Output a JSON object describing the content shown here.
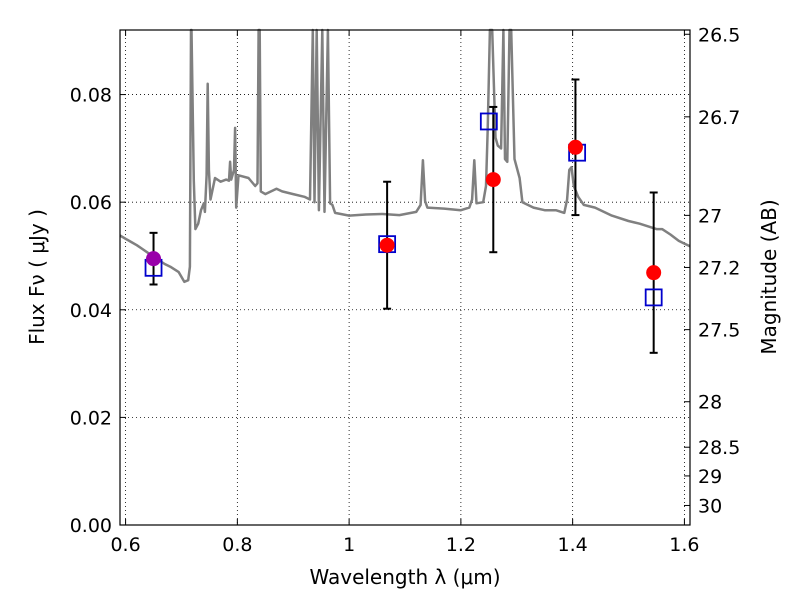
{
  "chart_data": {
    "type": "scatter",
    "title": "",
    "xlabel": "Wavelength  λ (μm)",
    "ylabel": "Flux  Fν  ( μJy )",
    "ylabel2": "Magnitude (AB)",
    "xlim": [
      0.59,
      1.61
    ],
    "ylim": [
      0.0,
      0.092
    ],
    "grid": true,
    "x_ticks": [
      {
        "value": 0.6,
        "label": "0.6"
      },
      {
        "value": 0.8,
        "label": "0.8"
      },
      {
        "value": 1.0,
        "label": "1"
      },
      {
        "value": 1.2,
        "label": "1.2"
      },
      {
        "value": 1.4,
        "label": "1.4"
      },
      {
        "value": 1.6,
        "label": "1.6"
      }
    ],
    "y_ticks": [
      {
        "value": 0.0,
        "label": "0.00"
      },
      {
        "value": 0.02,
        "label": "0.02"
      },
      {
        "value": 0.04,
        "label": "0.04"
      },
      {
        "value": 0.06,
        "label": "0.06"
      },
      {
        "value": 0.08,
        "label": "0.08"
      }
    ],
    "mag_ticks": [
      {
        "value": 26.5,
        "label": "26.5"
      },
      {
        "value": 26.7,
        "label": "26.7"
      },
      {
        "value": 27.0,
        "label": "27"
      },
      {
        "value": 27.2,
        "label": "27.2"
      },
      {
        "value": 27.5,
        "label": "27.5"
      },
      {
        "value": 28.0,
        "label": "28"
      },
      {
        "value": 28.5,
        "label": "28.5"
      },
      {
        "value": 29.0,
        "label": "29"
      },
      {
        "value": 30.0,
        "label": "30"
      }
    ],
    "colors": {
      "sed": "#808080",
      "observed": "#ff0000",
      "observed_first": "#9900aa",
      "model": "#0000cc",
      "errorbar": "#000000"
    },
    "observed": [
      {
        "x": 0.65,
        "y": 0.0495,
        "yerr": 0.0048
      },
      {
        "x": 1.068,
        "y": 0.052,
        "yerr": 0.0118
      },
      {
        "x": 1.258,
        "y": 0.0642,
        "yerr": 0.0135
      },
      {
        "x": 1.405,
        "y": 0.0702,
        "yerr": 0.0126
      },
      {
        "x": 1.545,
        "y": 0.0469,
        "yerr": 0.0149
      }
    ],
    "model_photometry": [
      {
        "x": 0.65,
        "y": 0.0478
      },
      {
        "x": 1.068,
        "y": 0.0522
      },
      {
        "x": 1.25,
        "y": 0.075
      },
      {
        "x": 1.408,
        "y": 0.0692
      },
      {
        "x": 1.545,
        "y": 0.0423
      }
    ],
    "sed": [
      [
        0.59,
        0.0538
      ],
      [
        0.6,
        0.0532
      ],
      [
        0.61,
        0.0526
      ],
      [
        0.62,
        0.052
      ],
      [
        0.63,
        0.0513
      ],
      [
        0.64,
        0.0506
      ],
      [
        0.65,
        0.0499
      ],
      [
        0.66,
        0.0492
      ],
      [
        0.67,
        0.0485
      ],
      [
        0.68,
        0.048
      ],
      [
        0.695,
        0.047
      ],
      [
        0.705,
        0.0452
      ],
      [
        0.712,
        0.0455
      ],
      [
        0.715,
        0.048
      ],
      [
        0.717,
        0.092
      ],
      [
        0.718,
        0.092
      ],
      [
        0.722,
        0.064
      ],
      [
        0.725,
        0.055
      ],
      [
        0.73,
        0.056
      ],
      [
        0.735,
        0.0585
      ],
      [
        0.74,
        0.0598
      ],
      [
        0.742,
        0.0582
      ],
      [
        0.745,
        0.065
      ],
      [
        0.747,
        0.082
      ],
      [
        0.749,
        0.066
      ],
      [
        0.752,
        0.0605
      ],
      [
        0.76,
        0.0645
      ],
      [
        0.77,
        0.0638
      ],
      [
        0.78,
        0.0642
      ],
      [
        0.785,
        0.064
      ],
      [
        0.787,
        0.0675
      ],
      [
        0.789,
        0.0642
      ],
      [
        0.794,
        0.066
      ],
      [
        0.796,
        0.0738
      ],
      [
        0.798,
        0.059
      ],
      [
        0.802,
        0.065
      ],
      [
        0.82,
        0.0645
      ],
      [
        0.832,
        0.063
      ],
      [
        0.836,
        0.0635
      ],
      [
        0.838,
        0.092
      ],
      [
        0.84,
        0.092
      ],
      [
        0.842,
        0.062
      ],
      [
        0.85,
        0.0615
      ],
      [
        0.87,
        0.0625
      ],
      [
        0.88,
        0.062
      ],
      [
        0.9,
        0.0615
      ],
      [
        0.92,
        0.061
      ],
      [
        0.93,
        0.0605
      ],
      [
        0.935,
        0.092
      ],
      [
        0.938,
        0.06
      ],
      [
        0.942,
        0.092
      ],
      [
        0.946,
        0.0585
      ],
      [
        0.952,
        0.092
      ],
      [
        0.956,
        0.0582
      ],
      [
        0.962,
        0.092
      ],
      [
        0.966,
        0.0598
      ],
      [
        0.97,
        0.0595
      ],
      [
        0.975,
        0.058
      ],
      [
        1.0,
        0.0575
      ],
      [
        1.03,
        0.0577
      ],
      [
        1.06,
        0.0578
      ],
      [
        1.09,
        0.0576
      ],
      [
        1.12,
        0.0582
      ],
      [
        1.128,
        0.0595
      ],
      [
        1.132,
        0.0678
      ],
      [
        1.136,
        0.0602
      ],
      [
        1.14,
        0.059
      ],
      [
        1.17,
        0.0588
      ],
      [
        1.2,
        0.0585
      ],
      [
        1.215,
        0.059
      ],
      [
        1.22,
        0.0605
      ],
      [
        1.224,
        0.0678
      ],
      [
        1.228,
        0.0598
      ],
      [
        1.24,
        0.06
      ],
      [
        1.245,
        0.063
      ],
      [
        1.248,
        0.0735
      ],
      [
        1.252,
        0.092
      ],
      [
        1.256,
        0.092
      ],
      [
        1.262,
        0.072
      ],
      [
        1.266,
        0.0705
      ],
      [
        1.272,
        0.07
      ],
      [
        1.276,
        0.092
      ],
      [
        1.279,
        0.068
      ],
      [
        1.283,
        0.0675
      ],
      [
        1.287,
        0.092
      ],
      [
        1.29,
        0.092
      ],
      [
        1.296,
        0.068
      ],
      [
        1.305,
        0.0645
      ],
      [
        1.31,
        0.06
      ],
      [
        1.33,
        0.059
      ],
      [
        1.35,
        0.0585
      ],
      [
        1.37,
        0.0585
      ],
      [
        1.385,
        0.058
      ],
      [
        1.39,
        0.0605
      ],
      [
        1.394,
        0.066
      ],
      [
        1.398,
        0.0665
      ],
      [
        1.402,
        0.063
      ],
      [
        1.41,
        0.061
      ],
      [
        1.42,
        0.0595
      ],
      [
        1.44,
        0.059
      ],
      [
        1.47,
        0.0575
      ],
      [
        1.5,
        0.0565
      ],
      [
        1.52,
        0.056
      ],
      [
        1.55,
        0.055
      ],
      [
        1.56,
        0.055
      ],
      [
        1.575,
        0.054
      ],
      [
        1.59,
        0.0528
      ],
      [
        1.6,
        0.0523
      ],
      [
        1.61,
        0.0518
      ]
    ]
  }
}
